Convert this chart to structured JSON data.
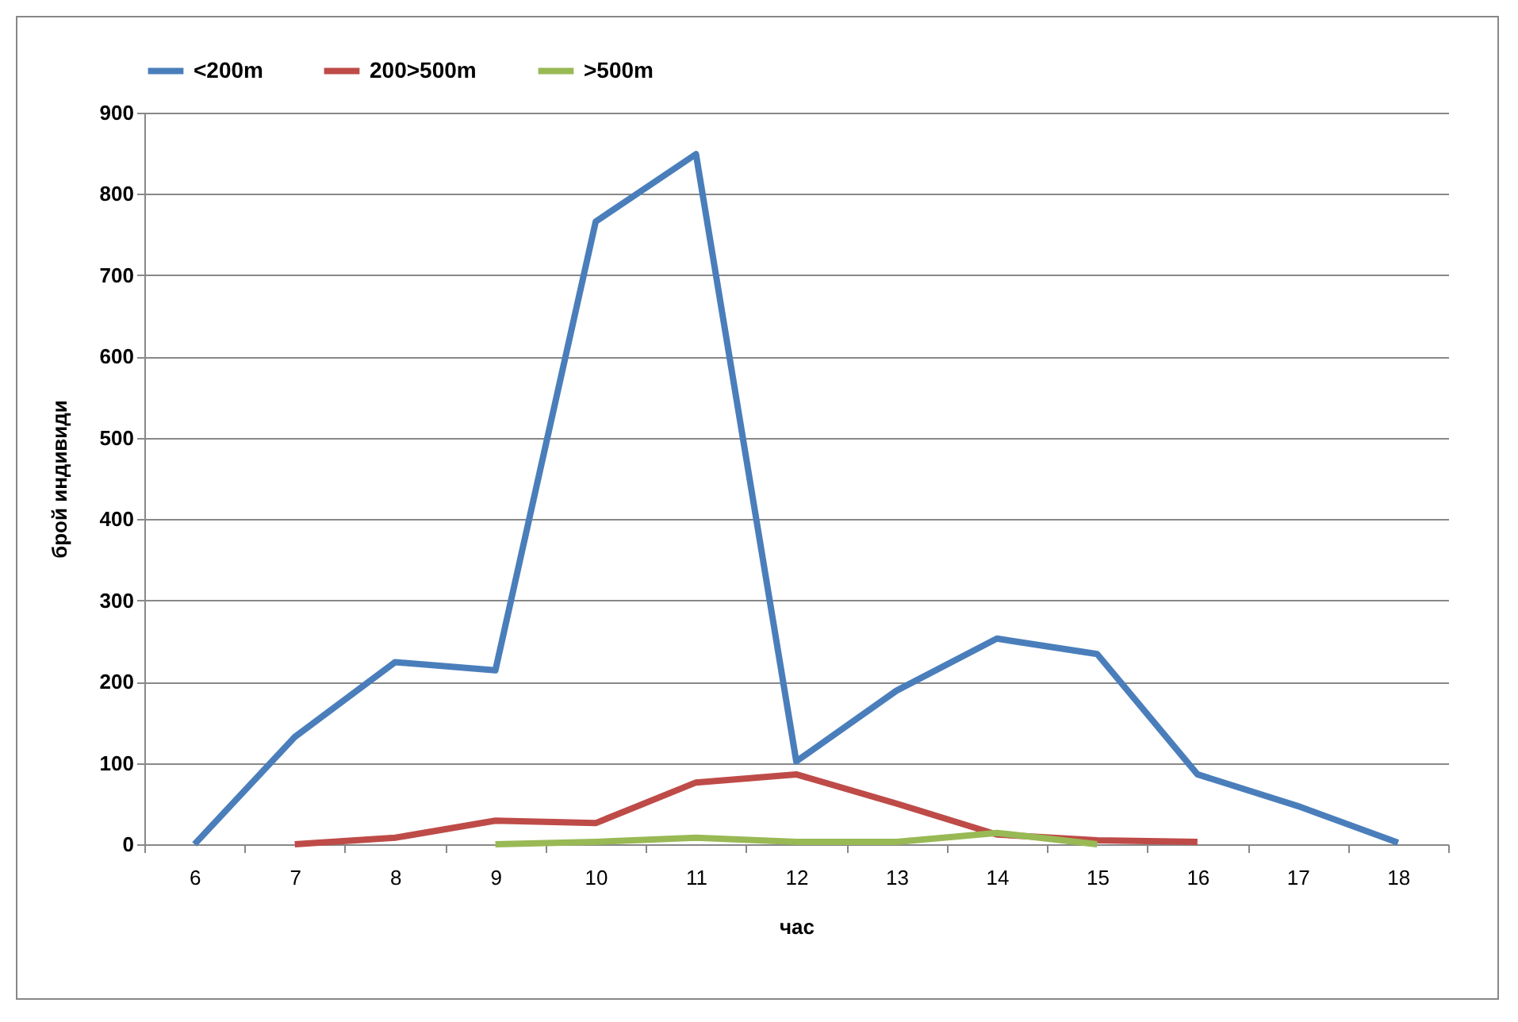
{
  "chart_data": {
    "type": "line",
    "xlabel": "час",
    "ylabel": "брой индивиди",
    "categories": [
      "6",
      "7",
      "8",
      "9",
      "10",
      "11",
      "12",
      "13",
      "14",
      "15",
      "16",
      "17",
      "18"
    ],
    "series": [
      {
        "name": "<200m",
        "color": "#4a7ebb",
        "values": [
          0,
          132,
          224,
          214,
          766,
          849,
          102,
          189,
          253,
          234,
          86,
          47,
          2
        ]
      },
      {
        "name": "200>500m",
        "color": "#be4b48",
        "values": [
          null,
          0,
          8,
          29,
          26,
          76,
          86,
          50,
          12,
          5,
          3,
          null,
          null
        ]
      },
      {
        "name": ">500m",
        "color": "#98b954",
        "values": [
          null,
          null,
          null,
          0,
          3,
          8,
          3,
          3,
          14,
          0,
          null,
          null,
          null
        ]
      }
    ],
    "ylim": [
      0,
      900
    ],
    "yticks": [
      0,
      100,
      200,
      300,
      400,
      500,
      600,
      700,
      800,
      900
    ],
    "grid": "y",
    "legend": "top"
  }
}
